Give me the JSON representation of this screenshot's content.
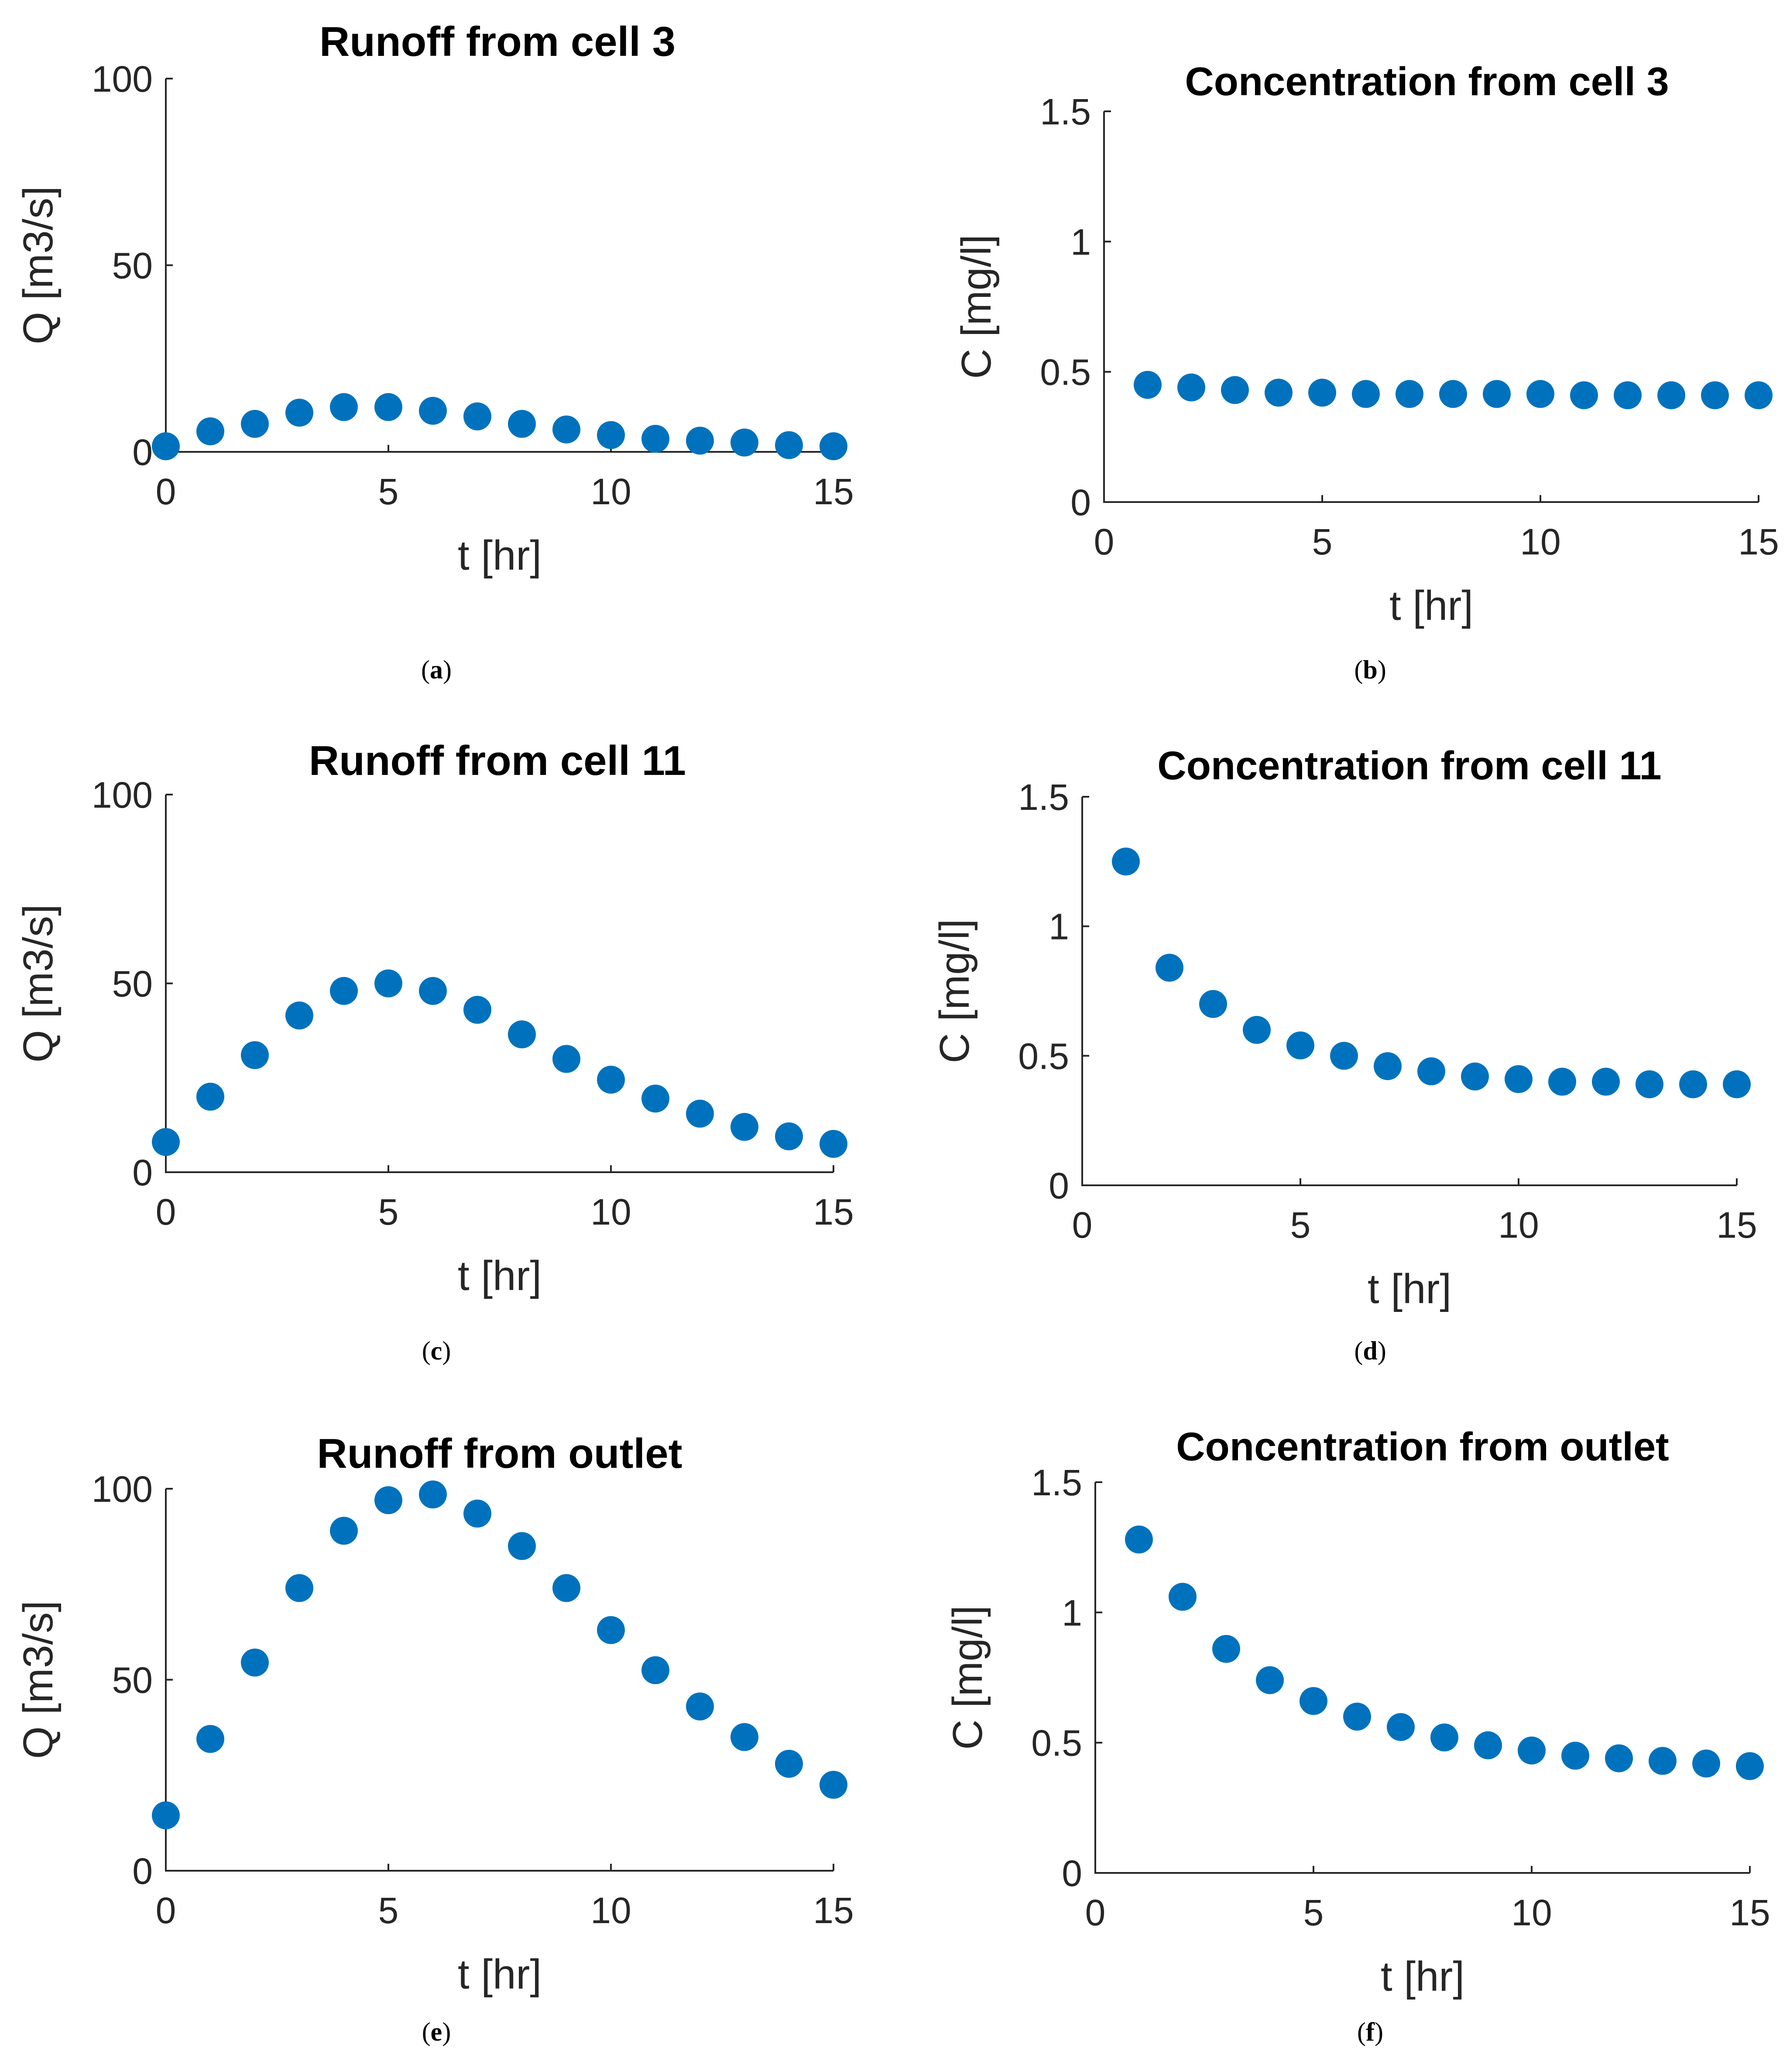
{
  "chart_data": [
    {
      "id": "a",
      "type": "scatter",
      "title": "Runoff from cell 3",
      "xlabel": "t [hr]",
      "ylabel": "Q [m3/s]",
      "xlim": [
        0,
        15
      ],
      "ylim": [
        0,
        100
      ],
      "xticks": [
        "0",
        "5",
        "10",
        "15"
      ],
      "yticks": [
        "0",
        "50",
        "100"
      ],
      "x": [
        0,
        1,
        2,
        3,
        4,
        5,
        6,
        7,
        8,
        9,
        10,
        11,
        12,
        13,
        14,
        15
      ],
      "y": [
        1.5,
        5.5,
        7.5,
        10.5,
        12,
        12,
        11,
        9.5,
        7.5,
        6,
        4.5,
        3.5,
        3,
        2.5,
        1.8,
        1.5
      ],
      "color": "#0072bd",
      "caption": "(a)",
      "caption_label": "a"
    },
    {
      "id": "b",
      "type": "scatter",
      "title": "Concentration from cell 3",
      "xlabel": "t [hr]",
      "ylabel": "C [mg/l]",
      "xlim": [
        0,
        15
      ],
      "ylim": [
        0,
        1.5
      ],
      "xticks": [
        "0",
        "5",
        "10",
        "15"
      ],
      "yticks": [
        "0",
        "0.5",
        "1",
        "1.5"
      ],
      "x": [
        1,
        2,
        3,
        4,
        5,
        6,
        7,
        8,
        9,
        10,
        11,
        12,
        13,
        14,
        15
      ],
      "y": [
        0.45,
        0.44,
        0.43,
        0.42,
        0.42,
        0.415,
        0.415,
        0.415,
        0.415,
        0.415,
        0.41,
        0.41,
        0.41,
        0.41,
        0.41
      ],
      "color": "#0072bd",
      "caption": "(b)",
      "caption_label": "b"
    },
    {
      "id": "c",
      "type": "scatter",
      "title": "Runoff from cell 11",
      "xlabel": "t [hr]",
      "ylabel": "Q [m3/s]",
      "xlim": [
        0,
        15
      ],
      "ylim": [
        0,
        100
      ],
      "xticks": [
        "0",
        "5",
        "10",
        "15"
      ],
      "yticks": [
        "0",
        "50",
        "100"
      ],
      "x": [
        0,
        1,
        2,
        3,
        4,
        5,
        6,
        7,
        8,
        9,
        10,
        11,
        12,
        13,
        14,
        15
      ],
      "y": [
        8,
        20,
        31,
        41.5,
        48,
        50,
        48,
        43,
        36.5,
        30,
        24.5,
        19.5,
        15.5,
        12,
        9.5,
        7.5
      ],
      "color": "#0072bd",
      "caption": "(c)",
      "caption_label": "c"
    },
    {
      "id": "d",
      "type": "scatter",
      "title": "Concentration from cell 11",
      "xlabel": "t [hr]",
      "ylabel": "C [mg/l]",
      "xlim": [
        0,
        15
      ],
      "ylim": [
        0,
        1.5
      ],
      "xticks": [
        "0",
        "5",
        "10",
        "15"
      ],
      "yticks": [
        "0",
        "0.5",
        "1",
        "1.5"
      ],
      "x": [
        1,
        2,
        3,
        4,
        5,
        6,
        7,
        8,
        9,
        10,
        11,
        12,
        13,
        14,
        15
      ],
      "y": [
        1.25,
        0.84,
        0.7,
        0.6,
        0.54,
        0.5,
        0.46,
        0.44,
        0.42,
        0.41,
        0.4,
        0.4,
        0.39,
        0.39,
        0.39
      ],
      "color": "#0072bd",
      "caption": "(d)",
      "caption_label": "d"
    },
    {
      "id": "e",
      "type": "scatter",
      "title": "Runoff from outlet",
      "xlabel": "t [hr]",
      "ylabel": "Q [m3/s]",
      "xlim": [
        0,
        15
      ],
      "ylim": [
        0,
        100
      ],
      "xticks": [
        "0",
        "5",
        "10",
        "15"
      ],
      "yticks": [
        "0",
        "50",
        "100"
      ],
      "x": [
        0,
        1,
        2,
        3,
        4,
        5,
        6,
        7,
        8,
        9,
        10,
        11,
        12,
        13,
        14,
        15
      ],
      "y": [
        14.5,
        34.5,
        54.5,
        74,
        89,
        97,
        98.5,
        93.5,
        85,
        74,
        63,
        52.5,
        43,
        35,
        28,
        22.5
      ],
      "color": "#0072bd",
      "caption": "(e)",
      "caption_label": "e"
    },
    {
      "id": "f",
      "type": "scatter",
      "title": "Concentration from outlet",
      "xlabel": "t [hr]",
      "ylabel": "C [mg/l]",
      "xlim": [
        0,
        15
      ],
      "ylim": [
        0,
        1.5
      ],
      "xticks": [
        "0",
        "5",
        "10",
        "15"
      ],
      "yticks": [
        "0",
        "0.5",
        "1",
        "1.5"
      ],
      "x": [
        1,
        2,
        3,
        4,
        5,
        6,
        7,
        8,
        9,
        10,
        11,
        12,
        13,
        14,
        15
      ],
      "y": [
        1.28,
        1.06,
        0.86,
        0.74,
        0.66,
        0.6,
        0.56,
        0.52,
        0.49,
        0.47,
        0.45,
        0.44,
        0.43,
        0.42,
        0.41
      ],
      "color": "#0072bd",
      "caption": "(f)",
      "caption_label": "f"
    }
  ]
}
